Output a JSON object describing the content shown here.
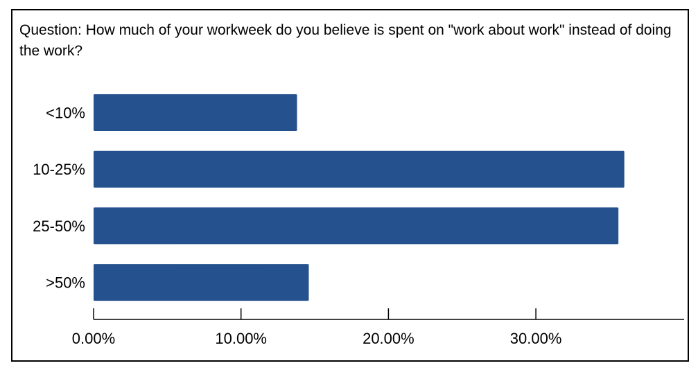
{
  "colors": {
    "bar": "#25528f",
    "axis": "#000000",
    "text": "#000000",
    "frame": "#000000"
  },
  "chart_data": {
    "type": "bar",
    "orientation": "horizontal",
    "title": "Question: How much of your workweek do you believe is spent on \"work about work\" instead of doing the work?",
    "categories": [
      "<10%",
      "10-25%",
      "25-50%",
      ">50%"
    ],
    "values": [
      13.8,
      36.0,
      35.6,
      14.6
    ],
    "xlim": [
      0,
      40
    ],
    "xticks": [
      0,
      10,
      20,
      30
    ],
    "xtick_labels": [
      "0.00%",
      "10.00%",
      "20.00%",
      "30.00%"
    ],
    "xlabel": "",
    "ylabel": "",
    "grid": false,
    "legend": "none"
  }
}
